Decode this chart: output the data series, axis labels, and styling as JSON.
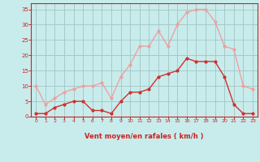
{
  "x": [
    0,
    1,
    2,
    3,
    4,
    5,
    6,
    7,
    8,
    9,
    10,
    11,
    12,
    13,
    14,
    15,
    16,
    17,
    18,
    19,
    20,
    21,
    22,
    23
  ],
  "mean_wind": [
    1,
    1,
    3,
    4,
    5,
    5,
    2,
    2,
    1,
    5,
    8,
    8,
    9,
    13,
    14,
    15,
    19,
    18,
    18,
    18,
    13,
    4,
    1,
    1
  ],
  "gust_wind": [
    10,
    4,
    6,
    8,
    9,
    10,
    10,
    11,
    6,
    13,
    17,
    23,
    23,
    28,
    23,
    30,
    34,
    35,
    35,
    31,
    23,
    22,
    10,
    9
  ],
  "mean_color": "#d03030",
  "gust_color": "#f0a0a0",
  "bg_color": "#c8ecec",
  "grid_color": "#a8c8c8",
  "axis_color": "#cc2222",
  "tick_color": "#cc2222",
  "xlabel": "Vent moyen/en rafales ( km/h )",
  "ylim": [
    0,
    37
  ],
  "xlim": [
    -0.5,
    23.5
  ],
  "yticks": [
    0,
    5,
    10,
    15,
    20,
    25,
    30,
    35
  ],
  "xticks": [
    0,
    1,
    2,
    3,
    4,
    5,
    6,
    7,
    8,
    9,
    10,
    11,
    12,
    13,
    14,
    15,
    16,
    17,
    18,
    19,
    20,
    21,
    22,
    23
  ],
  "xtick_labels": [
    "0",
    "1",
    "2",
    "3",
    "4",
    "5",
    "6",
    "7",
    "8",
    "9",
    "10",
    "11",
    "12",
    "13",
    "14",
    "15",
    "16",
    "17",
    "18",
    "19",
    "20",
    "21",
    "22",
    "23"
  ]
}
